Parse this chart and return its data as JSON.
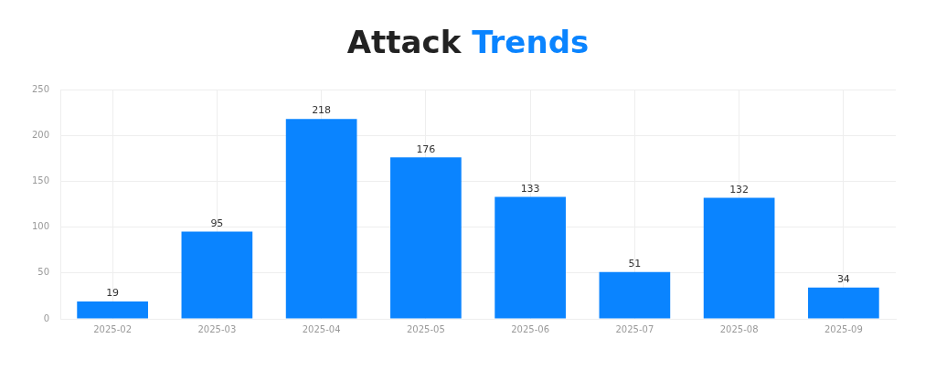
{
  "chart_data": {
    "type": "bar",
    "title": "Attack Trends",
    "categories": [
      "2025-02",
      "2025-03",
      "2025-04",
      "2025-05",
      "2025-06",
      "2025-07",
      "2025-08",
      "2025-09"
    ],
    "values": [
      19,
      95,
      218,
      176,
      133,
      51,
      132,
      34
    ],
    "color": "#0a84ff",
    "ylim": [
      0,
      250
    ],
    "yticks": [
      0,
      50,
      100,
      150,
      200,
      250
    ],
    "grid": true,
    "data_labels": true
  }
}
